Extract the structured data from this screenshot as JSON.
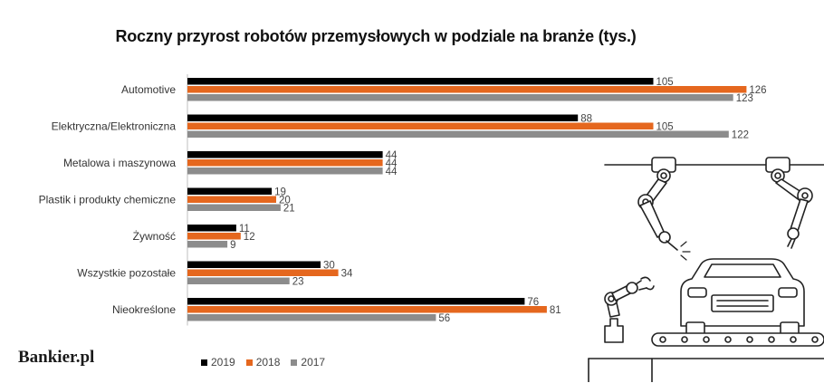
{
  "colors": {
    "2019": "#000000",
    "2018": "#e5671e",
    "2017": "#8c8c8c"
  },
  "branding": {
    "logo_text": "Bankier.pl"
  },
  "chart_data": {
    "type": "bar",
    "orientation": "horizontal",
    "title": "Roczny przyrost robotów przemysłowych w podziale na branże (tys.)",
    "categories": [
      "Automotive",
      "Elektryczna/Elektroniczna",
      "Metalowa i maszynowa",
      "Plastik i produkty chemiczne",
      "Żywność",
      "Wszystkie pozostałe",
      "Nieokreślone"
    ],
    "series": [
      {
        "name": "2019",
        "color": "#000000",
        "values": [
          105,
          88,
          44,
          19,
          11,
          30,
          76
        ]
      },
      {
        "name": "2018",
        "color": "#e5671e",
        "values": [
          126,
          105,
          44,
          20,
          12,
          34,
          81
        ]
      },
      {
        "name": "2017",
        "color": "#8c8c8c",
        "values": [
          123,
          122,
          44,
          21,
          9,
          23,
          56
        ]
      }
    ],
    "legend_position": "bottom-left",
    "data_labels": true,
    "grid": false
  }
}
